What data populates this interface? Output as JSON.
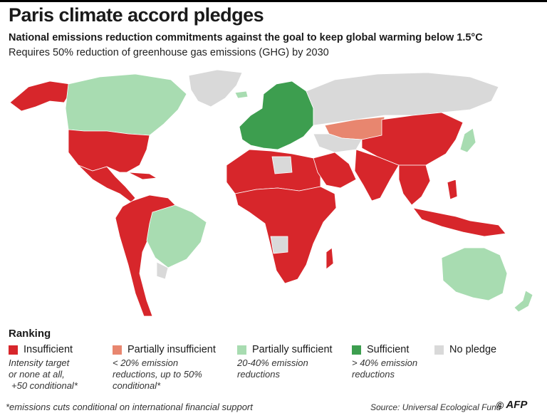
{
  "title": "Paris climate accord pledges",
  "subtitle": "National emissions reduction commitments against the goal to keep global warming below 1.5°C",
  "subtitle2": "Requires 50% reduction of greenhouse gas emissions (GHG) by 2030",
  "legend": {
    "heading": "Ranking",
    "items": [
      {
        "label": "Insufficient",
        "color": "#d7262b",
        "desc": [
          "Intensity target",
          "or none at all,",
          "+50 conditional*"
        ]
      },
      {
        "label": "Partially insufficient",
        "color": "#e8866f",
        "desc": [
          "< 20% emission",
          "reductions, up to 50%",
          "conditional*"
        ]
      },
      {
        "label": "Partially sufficient",
        "color": "#a8dcb1",
        "desc": [
          "20-40% emission",
          "reductions"
        ]
      },
      {
        "label": "Sufficient",
        "color": "#3d9e4f",
        "desc": [
          "> 40% emission",
          "reductions"
        ]
      },
      {
        "label": "No pledge",
        "color": "#d9d9d9",
        "desc": []
      }
    ]
  },
  "footnote": "*emissions cuts conditional on international financial support",
  "source": "Source:  Universal Ecological Fund",
  "logo": {
    "symbol": "©",
    "text": "AFP"
  },
  "map_colors": {
    "insufficient": "#d7262b",
    "partially_insufficient": "#e8866f",
    "partially_sufficient": "#a8dcb1",
    "sufficient": "#3d9e4f",
    "no_pledge": "#d9d9d9"
  }
}
